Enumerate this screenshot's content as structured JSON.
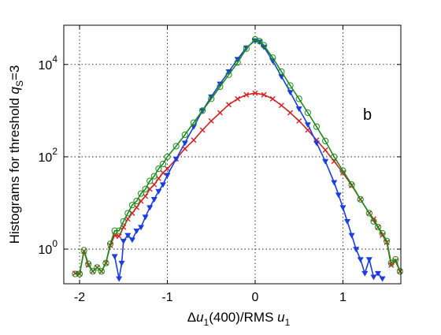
{
  "chart_data": {
    "type": "scatter",
    "xlabel_parts": {
      "delta": "Δ",
      "u": "u",
      "sub1": "1",
      "mid": "(400)/RMS ",
      "u2": "u",
      "sub2": "1"
    },
    "ylabel_parts": {
      "pre": "Histograms  for threshold ",
      "q": "q",
      "sub": "S",
      "post": "=3"
    },
    "annotation": "b",
    "xlim": [
      -2.18,
      1.66
    ],
    "ylim_log10": [
      -0.75,
      4.85
    ],
    "xscale": "linear",
    "yscale": "log",
    "grid": true,
    "legend": "none",
    "x_ticks": [
      {
        "value": -2,
        "label": "-2"
      },
      {
        "value": -1,
        "label": "-1"
      },
      {
        "value": 0,
        "label": "0"
      },
      {
        "value": 1,
        "label": "1"
      }
    ],
    "y_ticks": [
      {
        "value": 1,
        "base": "10",
        "exp": "0"
      },
      {
        "value": 100,
        "base": "10",
        "exp": "2"
      },
      {
        "value": 10000,
        "base": "10",
        "exp": "4"
      }
    ],
    "series": [
      {
        "marker": "circle",
        "color": "#1a8c1a",
        "points": [
          [
            -2.05,
            0.29
          ],
          [
            -2.0,
            0.29
          ],
          [
            -1.95,
            0.95
          ],
          [
            -1.9,
            0.48
          ],
          [
            -1.85,
            0.33
          ],
          [
            -1.8,
            0.4
          ],
          [
            -1.75,
            0.33
          ],
          [
            -1.7,
            0.5
          ],
          [
            -1.65,
            1.3
          ],
          [
            -1.6,
            2.5
          ],
          [
            -1.55,
            2.5
          ],
          [
            -1.5,
            4.0
          ],
          [
            -1.45,
            6.0
          ],
          [
            -1.4,
            9.0
          ],
          [
            -1.35,
            11.0
          ],
          [
            -1.3,
            16.0
          ],
          [
            -1.25,
            20.0
          ],
          [
            -1.2,
            30.0
          ],
          [
            -1.15,
            38.0
          ],
          [
            -1.1,
            55.0
          ],
          [
            -1.05,
            70.0
          ],
          [
            -1.0,
            100.0
          ],
          [
            -0.9,
            170.0
          ],
          [
            -0.8,
            300.0
          ],
          [
            -0.7,
            550.0
          ],
          [
            -0.6,
            1000.0
          ],
          [
            -0.5,
            1800.0
          ],
          [
            -0.4,
            3300.0
          ],
          [
            -0.3,
            6000.0
          ],
          [
            -0.2,
            11000.0
          ],
          [
            -0.1,
            22000.0
          ],
          [
            0.0,
            35000.0
          ],
          [
            0.05,
            32000.0
          ],
          [
            0.1,
            26000.0
          ],
          [
            0.2,
            14000.0
          ],
          [
            0.3,
            7000.0
          ],
          [
            0.4,
            3500.0
          ],
          [
            0.5,
            1800.0
          ],
          [
            0.6,
            900.0
          ],
          [
            0.7,
            450.0
          ],
          [
            0.8,
            220.0
          ],
          [
            0.9,
            100.0
          ],
          [
            1.0,
            50.0
          ],
          [
            1.1,
            25.0
          ],
          [
            1.2,
            12.0
          ],
          [
            1.3,
            6.0
          ],
          [
            1.35,
            4.0
          ],
          [
            1.4,
            3.0
          ],
          [
            1.45,
            2.2
          ],
          [
            1.5,
            1.5
          ],
          [
            1.55,
            0.5
          ],
          [
            1.6,
            0.6
          ],
          [
            1.65,
            0.33
          ]
        ]
      },
      {
        "marker": "cross",
        "color": "#d42020",
        "points": [
          [
            -2.05,
            0.3
          ],
          [
            -2.0,
            0.29
          ],
          [
            -1.95,
            0.9
          ],
          [
            -1.9,
            0.45
          ],
          [
            -1.85,
            0.33
          ],
          [
            -1.8,
            0.4
          ],
          [
            -1.75,
            0.33
          ],
          [
            -1.7,
            0.5
          ],
          [
            -1.65,
            1.2
          ],
          [
            -1.6,
            2.0
          ],
          [
            -1.55,
            1.9
          ],
          [
            -1.5,
            3.0
          ],
          [
            -1.45,
            4.5
          ],
          [
            -1.4,
            6.0
          ],
          [
            -1.35,
            8.0
          ],
          [
            -1.3,
            11.0
          ],
          [
            -1.25,
            14.0
          ],
          [
            -1.2,
            20.0
          ],
          [
            -1.15,
            25.0
          ],
          [
            -1.1,
            34.0
          ],
          [
            -1.05,
            45.0
          ],
          [
            -1.0,
            55.0
          ],
          [
            -0.9,
            90.0
          ],
          [
            -0.8,
            150.0
          ],
          [
            -0.7,
            230.0
          ],
          [
            -0.6,
            380.0
          ],
          [
            -0.5,
            600.0
          ],
          [
            -0.4,
            900.0
          ],
          [
            -0.3,
            1350.0
          ],
          [
            -0.2,
            1800.0
          ],
          [
            -0.1,
            2200.0
          ],
          [
            0.0,
            2400.0
          ],
          [
            0.1,
            2200.0
          ],
          [
            0.2,
            1800.0
          ],
          [
            0.3,
            1300.0
          ],
          [
            0.4,
            900.0
          ],
          [
            0.5,
            600.0
          ],
          [
            0.6,
            380.0
          ],
          [
            0.7,
            230.0
          ],
          [
            0.8,
            140.0
          ],
          [
            0.9,
            80.0
          ],
          [
            1.0,
            45.0
          ],
          [
            1.1,
            24.0
          ],
          [
            1.2,
            12.0
          ],
          [
            1.3,
            6.0
          ],
          [
            1.35,
            4.5
          ],
          [
            1.4,
            3.0
          ],
          [
            1.45,
            2.0
          ],
          [
            1.5,
            1.4
          ],
          [
            1.55,
            0.45
          ],
          [
            1.6,
            0.55
          ],
          [
            1.65,
            0.33
          ]
        ]
      },
      {
        "marker": "triangle-down",
        "color": "#1a3de0",
        "points": [
          [
            -1.6,
            0.7
          ],
          [
            -1.55,
            0.23
          ],
          [
            -1.52,
            0.5
          ],
          [
            -1.5,
            1.5
          ],
          [
            -1.45,
            2.0
          ],
          [
            -1.4,
            1.6
          ],
          [
            -1.35,
            2.5
          ],
          [
            -1.3,
            3.0
          ],
          [
            -1.25,
            5.0
          ],
          [
            -1.2,
            8.0
          ],
          [
            -1.15,
            12.0
          ],
          [
            -1.1,
            18.0
          ],
          [
            -1.05,
            25.0
          ],
          [
            -1.0,
            40.0
          ],
          [
            -0.9,
            90.0
          ],
          [
            -0.8,
            200.0
          ],
          [
            -0.7,
            450.0
          ],
          [
            -0.6,
            1000.0
          ],
          [
            -0.5,
            2000.0
          ],
          [
            -0.4,
            3800.0
          ],
          [
            -0.3,
            7000.0
          ],
          [
            -0.2,
            13000.0
          ],
          [
            -0.1,
            23000.0
          ],
          [
            0.0,
            33000.0
          ],
          [
            0.05,
            31000.0
          ],
          [
            0.1,
            24000.0
          ],
          [
            0.2,
            12000.0
          ],
          [
            0.3,
            5500.0
          ],
          [
            0.4,
            2500.0
          ],
          [
            0.5,
            1100.0
          ],
          [
            0.6,
            500.0
          ],
          [
            0.7,
            200.0
          ],
          [
            0.8,
            80.0
          ],
          [
            0.9,
            28.0
          ],
          [
            0.95,
            15.0
          ],
          [
            1.0,
            8.0
          ],
          [
            1.05,
            4.0
          ],
          [
            1.1,
            2.0
          ],
          [
            1.15,
            1.0
          ],
          [
            1.2,
            0.6
          ],
          [
            1.25,
            0.3
          ],
          [
            1.3,
            0.6
          ],
          [
            1.35,
            0.25
          ],
          [
            1.4,
            0.3
          ],
          [
            1.45,
            0.23
          ]
        ]
      }
    ]
  }
}
